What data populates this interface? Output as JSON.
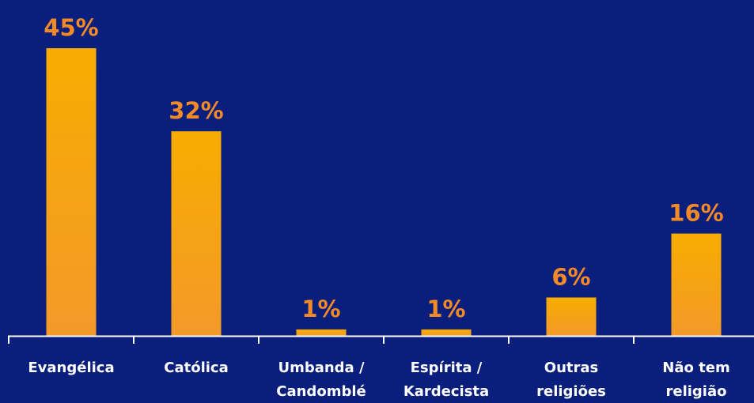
{
  "colors": {
    "background": "#0a1f7d",
    "bar_top": "#f8ac00",
    "bar_bottom": "#f29a2a",
    "value_label": "#f28a28",
    "category_label": "#ffffff",
    "axis": "#ffffff"
  },
  "chart_data": {
    "type": "bar",
    "categories": [
      [
        "Evangélica"
      ],
      [
        "Católica"
      ],
      [
        "Umbanda /",
        "Candomblé"
      ],
      [
        "Espírita /",
        "Kardecista"
      ],
      [
        "Outras",
        "religiões"
      ],
      [
        "Não tem",
        "religião"
      ]
    ],
    "values": [
      45,
      32,
      1,
      1,
      6,
      16
    ],
    "data_labels": [
      "45%",
      "32%",
      "1%",
      "1%",
      "6%",
      "16%"
    ],
    "ylim": [
      0,
      45
    ],
    "grid": false,
    "legend": "none"
  }
}
